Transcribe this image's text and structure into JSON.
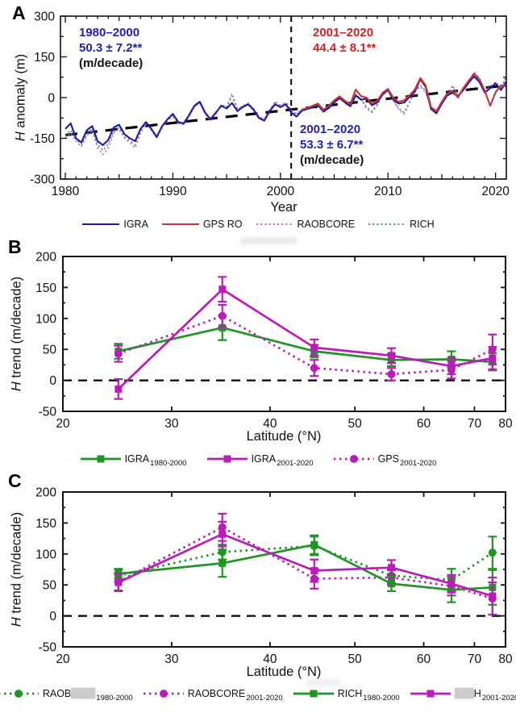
{
  "colors": {
    "igra_blue": "#1c1ca3",
    "gps_red": "#cc3430",
    "raobcore_orchid": "#c663c6",
    "rich_teal": "#55917c",
    "green": "#1f9522",
    "magenta": "#bb1bbb",
    "axis_black": "#111111",
    "annot_blue": "#2222aa",
    "annot_red": "#cc2222",
    "redact_gray": "#cbcbcb"
  },
  "chart_data": [
    {
      "panel": "A",
      "type": "line",
      "xlabel": "Year",
      "ylabel_italic": "H",
      "ylabel_rest": " anomaly (m)",
      "xlim": [
        1979.55,
        2021.0
      ],
      "ylim": [
        -300,
        300
      ],
      "xticks": [
        1980,
        1990,
        2000,
        2010,
        2020
      ],
      "yticks": [
        300,
        150,
        0,
        -150,
        -300
      ],
      "y_minor_ticks": [
        225,
        75,
        -75,
        -225
      ],
      "vline_x": 2001,
      "trend_line": {
        "x1": 1980,
        "y1": -138,
        "x2": 2021,
        "y2": 45
      },
      "annotations": {
        "left": {
          "period": "1980–2000",
          "trend": "50.3 ± 7.2**",
          "unit": "(m/decade)"
        },
        "right": {
          "period": "2001–2020",
          "trend": "44.4 ± 8.1**"
        },
        "mid": {
          "period": "2001–2020",
          "trend": "53.3 ± 6.7**",
          "unit": "(m/decade)"
        }
      },
      "x_start": 1980,
      "x_step": 0.5,
      "series": [
        {
          "name": "RAOBCORE",
          "color_key": "raobcore_orchid",
          "style": "dotted",
          "x_start": 1980,
          "values": [
            -150,
            -130,
            -160,
            -180,
            -140,
            -120,
            -185,
            -210,
            -185,
            -130,
            -115,
            -150,
            -165,
            -185,
            -130,
            -95,
            -120,
            -150,
            -110,
            -85,
            -70,
            -95,
            -100,
            -70,
            -35,
            -20,
            -60,
            -85,
            -60,
            -25,
            -35,
            15,
            -40,
            -30,
            -20,
            -40,
            -70,
            -80,
            -45,
            -15,
            -28,
            -18,
            -45,
            -60,
            -42,
            -38,
            -30,
            -25,
            -48,
            -32,
            -15,
            2,
            -15,
            -28,
            12,
            -5,
            -40,
            -55,
            -30,
            15,
            30,
            -10,
            -45,
            -60,
            -20,
            25,
            40,
            20,
            -38,
            -52,
            -18,
            12,
            45,
            10,
            32,
            58,
            95,
            70,
            25,
            40,
            58,
            35,
            75
          ]
        },
        {
          "name": "RICH",
          "color_key": "rich_teal",
          "style": "dotted",
          "x_start": 1980,
          "values": [
            -140,
            -120,
            -155,
            -172,
            -135,
            -115,
            -175,
            -195,
            -170,
            -125,
            -110,
            -145,
            -158,
            -175,
            -125,
            -92,
            -118,
            -148,
            -108,
            -82,
            -65,
            -92,
            -98,
            -68,
            -32,
            -18,
            -58,
            -82,
            -58,
            -28,
            -38,
            5,
            -45,
            -32,
            -22,
            -42,
            -72,
            -82,
            -48,
            -18,
            -30,
            -20,
            -48,
            -62,
            -45,
            -40,
            -32,
            -26,
            -50,
            -34,
            -16,
            0,
            -16,
            -30,
            10,
            -6,
            -35,
            -50,
            -25,
            14,
            28,
            -8,
            -40,
            -55,
            -15,
            24,
            45,
            25,
            -35,
            -48,
            -15,
            10,
            40,
            8,
            30,
            52,
            85,
            62,
            20,
            38,
            55,
            30,
            80
          ]
        },
        {
          "name": "IGRA",
          "color_key": "igra_blue",
          "style": "solid",
          "x_start": 1980,
          "values": [
            -115,
            -95,
            -150,
            -165,
            -120,
            -105,
            -160,
            -175,
            -155,
            -110,
            -100,
            -135,
            -150,
            -160,
            -115,
            -90,
            -115,
            -145,
            -105,
            -80,
            -60,
            -90,
            -95,
            -65,
            -30,
            -15,
            -55,
            -80,
            -55,
            -30,
            -40,
            -20,
            -50,
            -35,
            -25,
            -45,
            -75,
            -85,
            -50,
            -25,
            -35,
            -25,
            -55,
            -70,
            -48,
            -42,
            -35,
            -28,
            -52,
            -38,
            -18,
            -2,
            -18,
            -32,
            8,
            -8,
            -4,
            -28,
            -18,
            12,
            28,
            -8,
            -22,
            -18,
            2,
            22,
            68,
            40,
            -42,
            -58,
            -22,
            8,
            18,
            4,
            28,
            55,
            78,
            58,
            18,
            35,
            52,
            28,
            58
          ]
        },
        {
          "name": "GPS RO",
          "color_key": "gps_red",
          "style": "solid",
          "x_start": 2002,
          "values": [
            -45,
            -38,
            -30,
            -22,
            -45,
            -30,
            -10,
            5,
            -12,
            -25,
            30,
            5,
            0,
            -22,
            -12,
            18,
            32,
            -2,
            -15,
            -10,
            8,
            30,
            72,
            45,
            -35,
            -50,
            -15,
            15,
            25,
            0,
            35,
            62,
            88,
            68,
            25,
            -30,
            20,
            45,
            40
          ]
        }
      ],
      "legend": [
        {
          "label": "IGRA",
          "color_key": "igra_blue",
          "style": "solid"
        },
        {
          "label": "GPS RO",
          "color_key": "gps_red",
          "style": "solid"
        },
        {
          "label": "RAOBCORE",
          "color_key": "raobcore_orchid",
          "style": "dotted"
        },
        {
          "label": "RICH",
          "color_key": "rich_teal",
          "style": "dotted"
        }
      ]
    },
    {
      "panel": "B",
      "type": "line",
      "xlabel": "Latitude (°N)",
      "ylabel_italic": "H",
      "ylabel_rest": " trend (m/decade)",
      "xlim": [
        20,
        80
      ],
      "ylim": [
        -50,
        200
      ],
      "x_scale": "sin",
      "xticks": [
        20,
        30,
        40,
        50,
        60,
        70,
        80
      ],
      "yticks": [
        -50,
        0,
        50,
        100,
        150,
        200
      ],
      "zero_line": true,
      "x": [
        25,
        35,
        45,
        55,
        65,
        75
      ],
      "series": [
        {
          "name": "IGRA 1980-2000",
          "color_key": "green",
          "style": "solid",
          "marker": "square",
          "values": [
            47,
            85,
            47,
            33,
            34,
            30
          ],
          "err": [
            12,
            20,
            10,
            10,
            13,
            14
          ]
        },
        {
          "name": "GPS 2001-2020",
          "color_key": "magenta",
          "style": "dotted",
          "marker": "circle",
          "values": [
            43,
            104,
            20,
            10,
            17,
            50
          ],
          "err": [
            13,
            18,
            13,
            10,
            14,
            24
          ]
        },
        {
          "name": "IGRA 2001-2020",
          "color_key": "magenta",
          "style": "solid",
          "marker": "square",
          "values": [
            -14,
            147,
            53,
            40,
            23,
            36
          ],
          "err": [
            16,
            20,
            13,
            12,
            13,
            18
          ]
        }
      ],
      "legend": [
        {
          "label": "IGRA",
          "sub": "1980-2000",
          "color_key": "green",
          "style": "solid",
          "marker": "square"
        },
        {
          "label": "IGRA",
          "sub": "2001-2020",
          "color_key": "magenta",
          "style": "solid",
          "marker": "square"
        },
        {
          "label": "GPS",
          "sub": "2001-2020",
          "color_key": "magenta",
          "style": "dotted",
          "marker": "circle"
        }
      ]
    },
    {
      "panel": "C",
      "type": "line",
      "xlabel": "Latitude (°N)",
      "ylabel_italic": "H",
      "ylabel_rest": " trend (m/decade)",
      "xlim": [
        20,
        80
      ],
      "ylim": [
        -50,
        200
      ],
      "x_scale": "sin",
      "xticks": [
        20,
        30,
        40,
        50,
        60,
        70,
        80
      ],
      "yticks": [
        -50,
        0,
        50,
        100,
        150,
        200
      ],
      "zero_line": true,
      "x": [
        25,
        35,
        45,
        55,
        65,
        75
      ],
      "series": [
        {
          "name": "RAOBCORE 1980-2000",
          "color_key": "green",
          "style": "dotted",
          "marker": "circle",
          "values": [
            65,
            103,
            113,
            65,
            58,
            102
          ],
          "err": [
            10,
            12,
            15,
            12,
            18,
            26
          ]
        },
        {
          "name": "RAOBCORE 2001-2020",
          "color_key": "magenta",
          "style": "dotted",
          "marker": "circle",
          "values": [
            55,
            143,
            60,
            62,
            48,
            28
          ],
          "err": [
            14,
            22,
            16,
            12,
            15,
            26
          ]
        },
        {
          "name": "RICH 1980-2000",
          "color_key": "green",
          "style": "solid",
          "marker": "square",
          "values": [
            68,
            85,
            115,
            52,
            42,
            46
          ],
          "err": [
            8,
            22,
            15,
            12,
            20,
            28
          ]
        },
        {
          "name": "RICH 2001-2020",
          "color_key": "magenta",
          "style": "solid",
          "marker": "square",
          "values": [
            54,
            132,
            73,
            78,
            52,
            32
          ],
          "err": [
            14,
            20,
            18,
            12,
            14,
            30
          ]
        }
      ],
      "legend": [
        {
          "label": "RAOB",
          "redact_after": true,
          "sub": "1980-2000",
          "color_key": "green",
          "style": "dotted",
          "marker": "circle"
        },
        {
          "label": "RAOBCORE",
          "sub": "2001-2020",
          "color_key": "magenta",
          "style": "dotted",
          "marker": "circle"
        },
        {
          "label": "RICH",
          "sub": "1980-2000",
          "color_key": "green",
          "style": "solid",
          "marker": "square"
        },
        {
          "label": "H",
          "redact_before": true,
          "sub": "2001-2020",
          "color_key": "magenta",
          "style": "solid",
          "marker": "square"
        }
      ]
    }
  ]
}
